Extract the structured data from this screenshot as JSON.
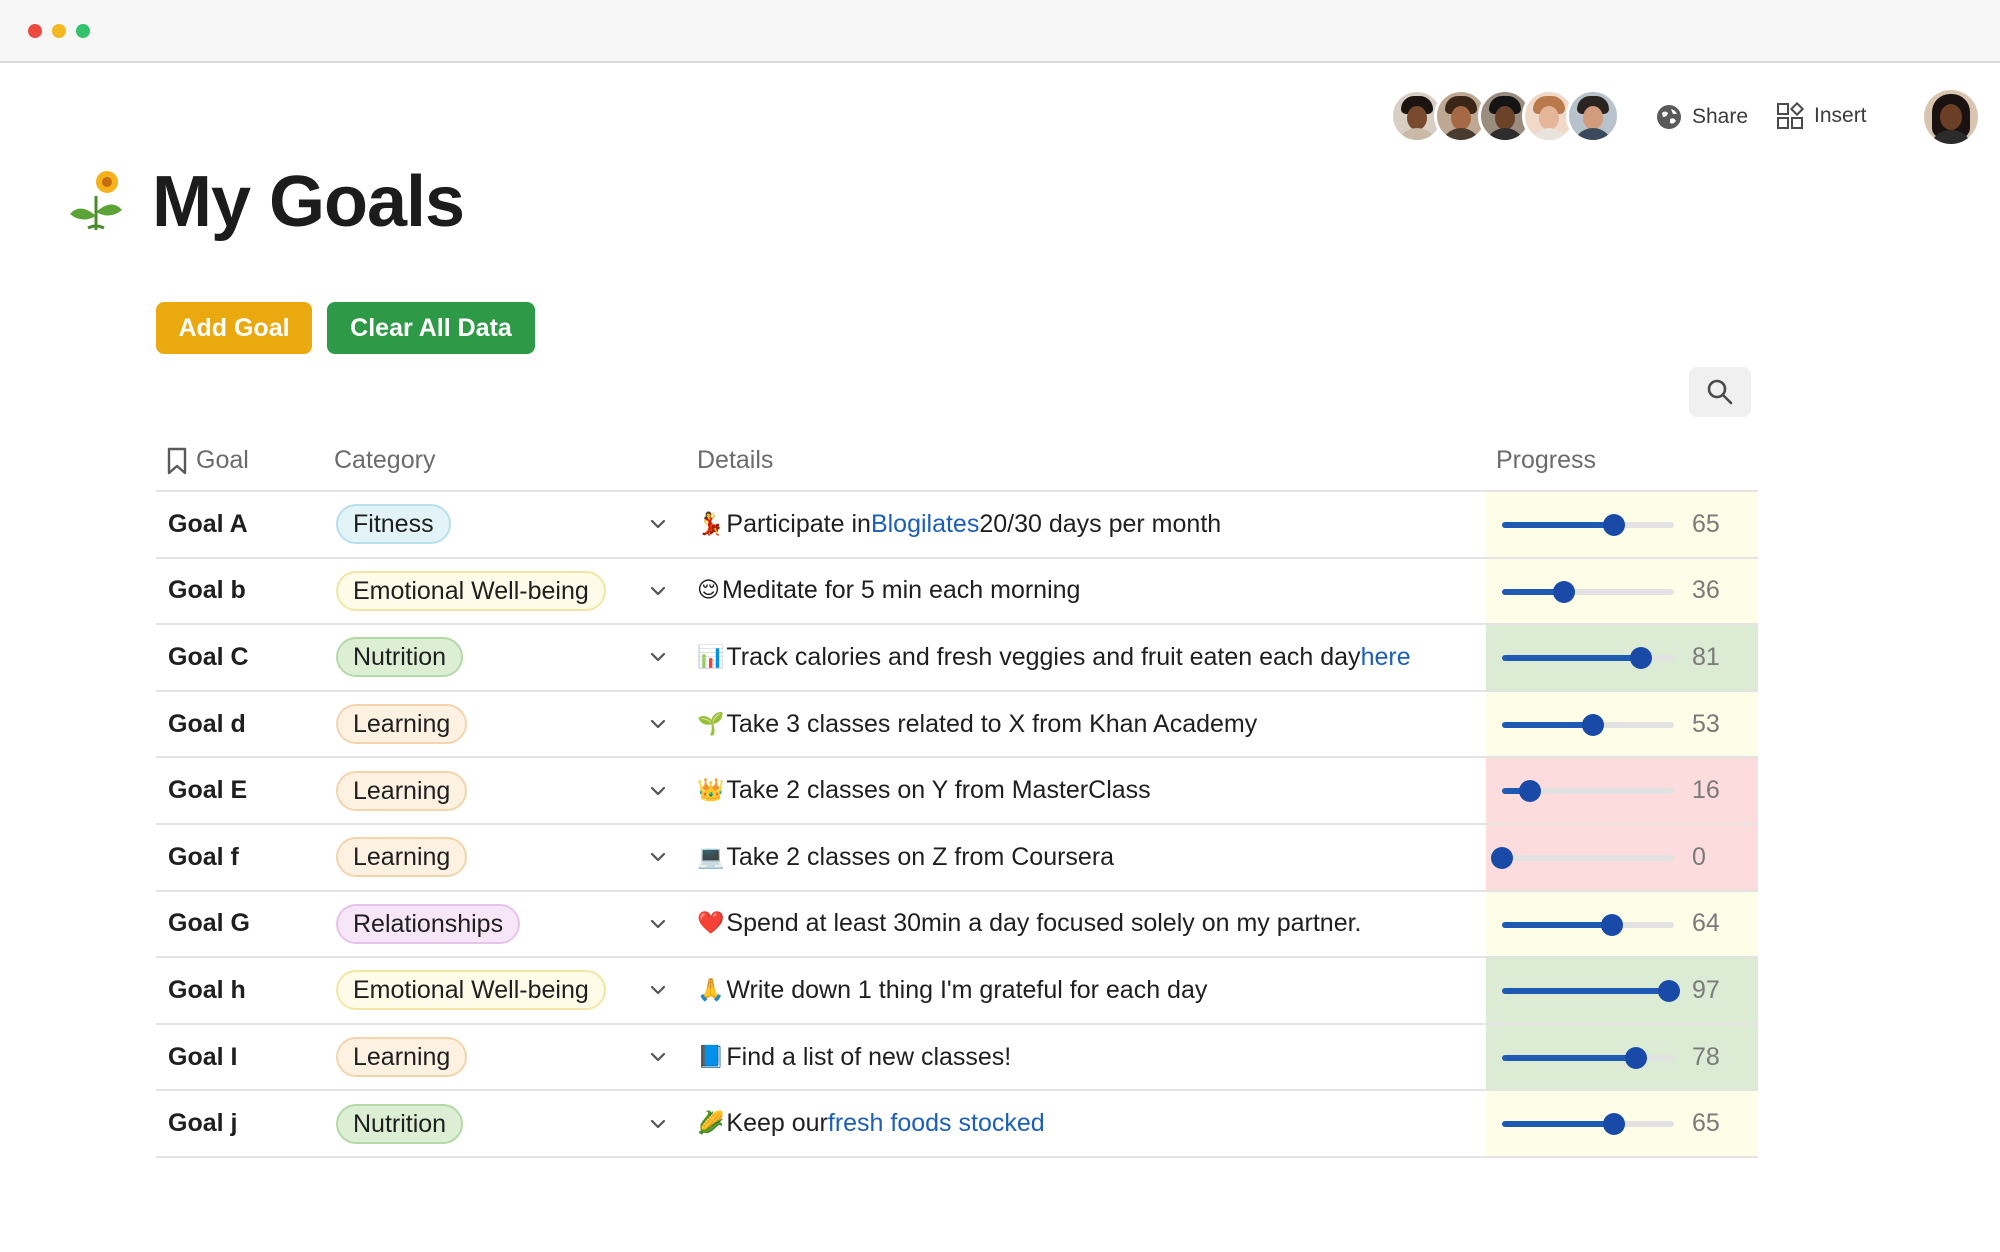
{
  "toolbar": {
    "share_label": "Share",
    "insert_label": "Insert",
    "collaborators": [
      {
        "skin": "#7a4a2f",
        "hair": "#1b1411",
        "shirt": "#c9b9a6",
        "bg": "#d8cfc4"
      },
      {
        "skin": "#a56a45",
        "hair": "#3b2617",
        "shirt": "#4a3b30",
        "bg": "#bfa892"
      },
      {
        "skin": "#6a4228",
        "hair": "#141414",
        "shirt": "#2d2d2d",
        "bg": "#9a8c7e"
      },
      {
        "skin": "#e5b59a",
        "hair": "#b87a4b",
        "shirt": "#e8e3dc",
        "bg": "#f0d9c8"
      },
      {
        "skin": "#d19c7c",
        "hair": "#2a2420",
        "shirt": "#3a4a5c",
        "bg": "#b7c2cc"
      }
    ]
  },
  "page": {
    "title": "My Goals",
    "icon": "sunflower-sprout-icon"
  },
  "actions": {
    "add_goal": "Add Goal",
    "clear_all": "Clear All Data"
  },
  "table": {
    "headers": {
      "goal": "Goal",
      "category": "Category",
      "details": "Details",
      "progress": "Progress"
    },
    "rows": [
      {
        "goal": "Goal A",
        "category": "Fitness",
        "cat_style": "fitness",
        "emoji": "💃",
        "details_pre": "Participate in ",
        "details_link": "Blogilates",
        "details_post": " 20/30 days per month",
        "progress": 65,
        "bg": "#fefde8"
      },
      {
        "goal": "Goal b",
        "category": "Emotional Well-being",
        "cat_style": "emotional",
        "emoji": "😌",
        "details_pre": "Meditate for 5 min each morning",
        "details_link": "",
        "details_post": "",
        "progress": 36,
        "bg": "#fefde8"
      },
      {
        "goal": "Goal C",
        "category": "Nutrition",
        "cat_style": "nutrition",
        "emoji": "📊",
        "details_pre": "Track calories and fresh veggies and fruit eaten each day ",
        "details_link": "here",
        "details_post": "",
        "progress": 81,
        "bg": "#dcebd3"
      },
      {
        "goal": "Goal d",
        "category": "Learning",
        "cat_style": "learning",
        "emoji": "🌱",
        "details_pre": "Take 3 classes related to X from Khan Academy",
        "details_link": "",
        "details_post": "",
        "progress": 53,
        "bg": "#fefde8"
      },
      {
        "goal": "Goal E",
        "category": "Learning",
        "cat_style": "learning",
        "emoji": "👑",
        "details_pre": "Take 2 classes on Y from MasterClass",
        "details_link": "",
        "details_post": "",
        "progress": 16,
        "bg": "#fcdcdc"
      },
      {
        "goal": "Goal f",
        "category": "Learning",
        "cat_style": "learning",
        "emoji": "💻",
        "details_pre": "Take 2 classes on Z from Coursera",
        "details_link": "",
        "details_post": "",
        "progress": 0,
        "bg": "#fcdcdc"
      },
      {
        "goal": "Goal G",
        "category": "Relationships",
        "cat_style": "relationships",
        "emoji": "❤️",
        "details_pre": "Spend at least 30min a day focused solely on my partner.",
        "details_link": "",
        "details_post": "",
        "progress": 64,
        "bg": "#fefde8"
      },
      {
        "goal": "Goal h",
        "category": "Emotional Well-being",
        "cat_style": "emotional",
        "emoji": "🙏",
        "details_pre": "Write down 1 thing I'm grateful for each day",
        "details_link": "",
        "details_post": "",
        "progress": 97,
        "bg": "#dcebd3"
      },
      {
        "goal": "Goal I",
        "category": "Learning",
        "cat_style": "learning",
        "emoji": "📘",
        "details_pre": "Find a list of new classes!",
        "details_link": "",
        "details_post": "",
        "progress": 78,
        "bg": "#dcebd3"
      },
      {
        "goal": "Goal j",
        "category": "Nutrition",
        "cat_style": "nutrition",
        "emoji": "🌽",
        "details_pre": "Keep our ",
        "details_link": "fresh foods stocked",
        "details_post": "",
        "progress": 65,
        "bg": "#fefde8"
      }
    ]
  },
  "category_styles": {
    "fitness": {
      "bg": "#e3f4f9",
      "border": "#b8e0ec"
    },
    "emotional": {
      "bg": "#fefbe8",
      "border": "#f3e6a5"
    },
    "nutrition": {
      "bg": "#dcefd5",
      "border": "#b4d9a6"
    },
    "learning": {
      "bg": "#fdf1e2",
      "border": "#f2d5ad"
    },
    "relationships": {
      "bg": "#f6e6f7",
      "border": "#e6c3e8"
    }
  },
  "colors": {
    "add_button": "#e9a90f",
    "clear_button": "#2e9a47",
    "slider": "#1e5ab3",
    "link": "#1c5fb8"
  }
}
